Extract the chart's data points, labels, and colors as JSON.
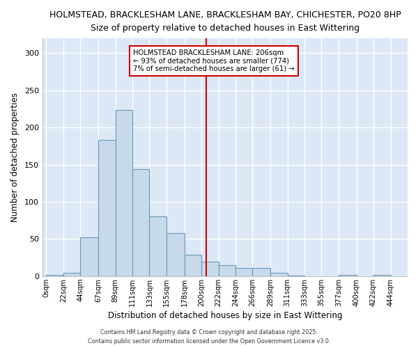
{
  "title1": "HOLMSTEAD, BRACKLESHAM LANE, BRACKLESHAM BAY, CHICHESTER, PO20 8HP",
  "title2": "Size of property relative to detached houses in East Wittering",
  "xlabel": "Distribution of detached houses by size in East Wittering",
  "ylabel": "Number of detached properties",
  "bin_edges": [
    0,
    22,
    44,
    67,
    89,
    111,
    133,
    155,
    178,
    200,
    222,
    244,
    266,
    289,
    311,
    333,
    355,
    377,
    400,
    422,
    444
  ],
  "bin_labels": [
    "0sqm",
    "22sqm",
    "44sqm",
    "67sqm",
    "89sqm",
    "111sqm",
    "133sqm",
    "155sqm",
    "178sqm",
    "200sqm",
    "222sqm",
    "244sqm",
    "266sqm",
    "289sqm",
    "311sqm",
    "333sqm",
    "355sqm",
    "377sqm",
    "400sqm",
    "422sqm",
    "444sqm"
  ],
  "bar_heights": [
    2,
    5,
    52,
    183,
    224,
    144,
    80,
    58,
    29,
    20,
    15,
    11,
    11,
    5,
    1,
    0,
    0,
    2,
    0,
    2
  ],
  "bar_color": "#c8daea",
  "bar_edgecolor": "#6699bb",
  "property_sqm": 206,
  "annotation_title": "HOLMSTEAD BRACKLESHAM LANE: 206sqm",
  "annotation_line1": "← 93% of detached houses are smaller (774)",
  "annotation_line2": "7% of semi-detached houses are larger (61) →",
  "annotation_box_color": "#cc0000",
  "vline_color": "#cc0000",
  "ylim": [
    0,
    320
  ],
  "yticks": [
    0,
    50,
    100,
    150,
    200,
    250,
    300
  ],
  "plot_bg_color": "#dce8f5",
  "fig_bg_color": "#ffffff",
  "grid_color": "#ffffff",
  "footer1": "Contains HM Land Registry data © Crown copyright and database right 2025.",
  "footer2": "Contains public sector information licensed under the Open Government Licence v3.0."
}
